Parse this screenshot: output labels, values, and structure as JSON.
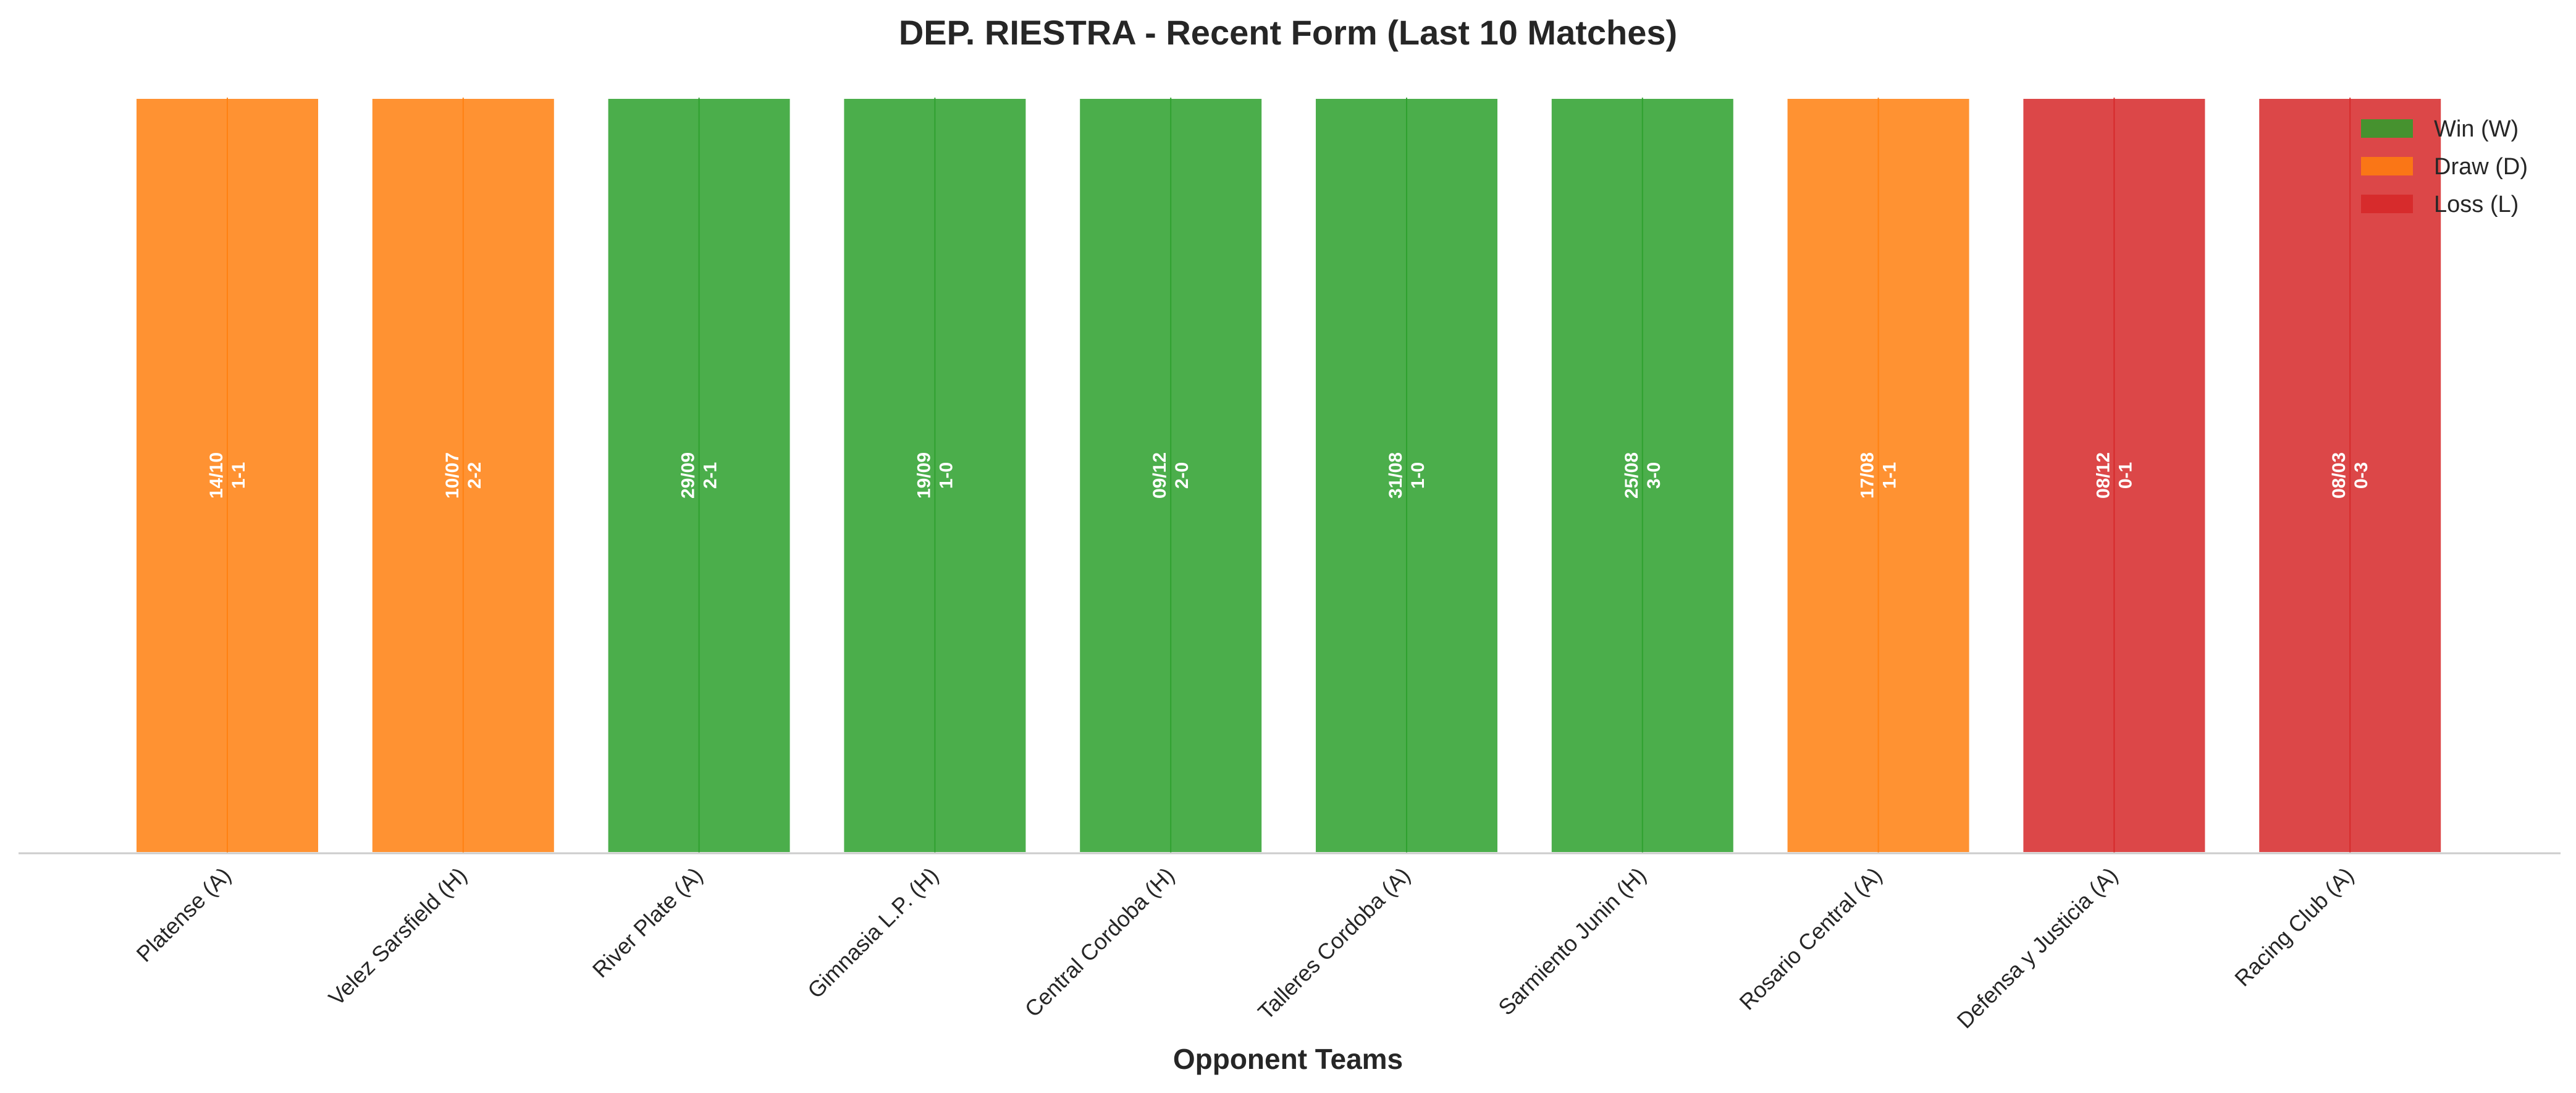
{
  "chart_data": {
    "type": "bar",
    "title": "DEP. RIESTRA - Recent Form (Last 10 Matches)",
    "xlabel": "Opponent Teams",
    "ylabel": "",
    "grid": false,
    "legend_position": "top-right",
    "categories": [
      "Platense (A)",
      "Velez Sarsfield (H)",
      "River Plate (A)",
      "Gimnasia L.P. (H)",
      "Central Cordoba (H)",
      "Talleres Cordoba (A)",
      "Sarmiento Junin (H)",
      "Rosario Central (A)",
      "Defensa y Justicia (A)",
      "Racing Club (A)"
    ],
    "values": [
      1,
      1,
      1,
      1,
      1,
      1,
      1,
      1,
      1,
      1
    ],
    "ylim": [
      0,
      1
    ],
    "results": [
      "D",
      "D",
      "W",
      "W",
      "W",
      "W",
      "W",
      "D",
      "L",
      "L"
    ],
    "dates": [
      "14/10",
      "10/07",
      "29/09",
      "19/09",
      "09/12",
      "31/08",
      "25/08",
      "17/08",
      "08/12",
      "08/03"
    ],
    "scores": [
      "1-1",
      "2-2",
      "2-1",
      "1-0",
      "2-0",
      "1-0",
      "3-0",
      "1-1",
      "0-1",
      "0-3"
    ],
    "legend": [
      {
        "key": "W",
        "label": "Win (W)",
        "color": "#2ca02c"
      },
      {
        "key": "D",
        "label": "Draw (D)",
        "color": "#ff7f0e"
      },
      {
        "key": "L",
        "label": "Loss (L)",
        "color": "#d62728"
      }
    ],
    "colors": {
      "W": "#2ca02c",
      "D": "#ff7f0e",
      "L": "#d62728"
    },
    "bar_opacity": 0.85
  }
}
